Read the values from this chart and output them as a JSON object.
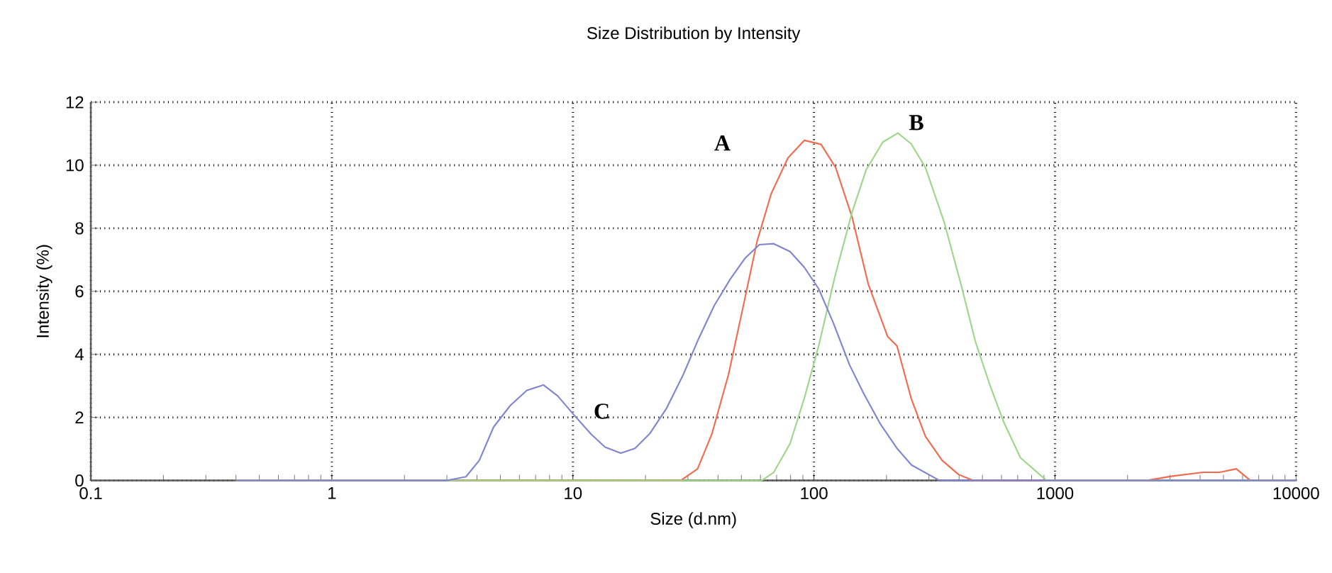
{
  "chart_data": {
    "type": "line",
    "title": "Size Distribution by Intensity",
    "xlabel": "Size (d.nm)",
    "ylabel": "Intensity (%)",
    "log": "x",
    "xlim": [
      0.1,
      10000
    ],
    "ylim": [
      0,
      12
    ],
    "xticks": [
      0.1,
      1,
      10,
      100,
      1000,
      10000
    ],
    "yticks": [
      0,
      2,
      4,
      6,
      8,
      10,
      12
    ],
    "grid": true,
    "marker": "none",
    "line_style": "solid",
    "annotations": [
      "A",
      "B",
      "C"
    ],
    "series": [
      {
        "color": "#f26b4f",
        "x": [
          0.4,
          28,
          32.9,
          37.7,
          44.2,
          50.7,
          58.1,
          66.5,
          78,
          91.3,
          107,
          123,
          144,
          168,
          202,
          221,
          253,
          290,
          340,
          398,
          457,
          2388,
          3069,
          4115,
          4820,
          5650,
          6470,
          10000
        ],
        "values": [
          0,
          0,
          0.37,
          1.47,
          3.36,
          5.47,
          7.59,
          9.1,
          10.23,
          10.79,
          10.66,
          9.93,
          8.35,
          6.23,
          4.57,
          4.27,
          2.61,
          1.4,
          0.64,
          0.19,
          0,
          0,
          0.14,
          0.26,
          0.26,
          0.37,
          0,
          0
        ]
      },
      {
        "color": "#9ed68a",
        "x": [
          0.4,
          60.7,
          68.1,
          79.6,
          91.2,
          104.6,
          122.7,
          143.8,
          164.8,
          192.9,
          223,
          253,
          290,
          347,
          407,
          467,
          535,
          613,
          719,
          923,
          10000
        ],
        "values": [
          0,
          0,
          0.26,
          1.17,
          2.61,
          4.27,
          6.53,
          8.5,
          9.86,
          10.73,
          11.02,
          10.68,
          9.93,
          8.19,
          6.23,
          4.42,
          3.06,
          1.85,
          0.72,
          0,
          0
        ]
      },
      {
        "color": "#7f85d0",
        "x": [
          0.4,
          3.0,
          3.6,
          4.09,
          4.69,
          5.5,
          6.44,
          7.55,
          8.65,
          10.1,
          11.9,
          13.6,
          15.8,
          18.1,
          20.9,
          24.5,
          28.7,
          33.2,
          38.6,
          44.9,
          51.9,
          59.4,
          68.1,
          79.6,
          91.2,
          104.6,
          120,
          140.6,
          161,
          189,
          221,
          254,
          332,
          10000
        ],
        "values": [
          0,
          0,
          0.12,
          0.64,
          1.7,
          2.38,
          2.86,
          3.03,
          2.68,
          2.08,
          1.47,
          1.06,
          0.87,
          1.02,
          1.5,
          2.3,
          3.36,
          4.49,
          5.55,
          6.38,
          7.06,
          7.48,
          7.51,
          7.26,
          6.76,
          6.08,
          5.02,
          3.66,
          2.75,
          1.78,
          1.02,
          0.49,
          0,
          0
        ]
      }
    ]
  }
}
